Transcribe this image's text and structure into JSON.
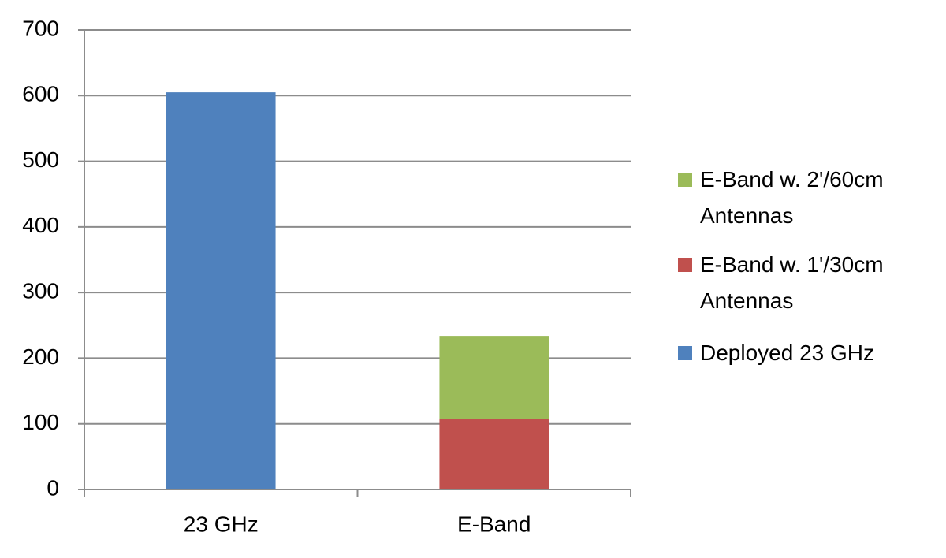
{
  "chart_data": {
    "type": "stacked-bar",
    "categories": [
      "23 GHz",
      "E-Band"
    ],
    "series": [
      {
        "name": "Deployed 23 GHz",
        "color": "#4f81bd",
        "values": [
          605,
          null
        ]
      },
      {
        "name": "E-Band w. 1'/30cm Antennas",
        "color": "#c0504d",
        "values": [
          null,
          107
        ]
      },
      {
        "name": "E-Band w. 2'/60cm Antennas",
        "color": "#9bbb59",
        "values": [
          null,
          127
        ]
      }
    ],
    "ylim": [
      0,
      700
    ],
    "yticks": [
      0,
      100,
      200,
      300,
      400,
      500,
      600,
      700
    ],
    "grid": true,
    "legend": "right"
  }
}
